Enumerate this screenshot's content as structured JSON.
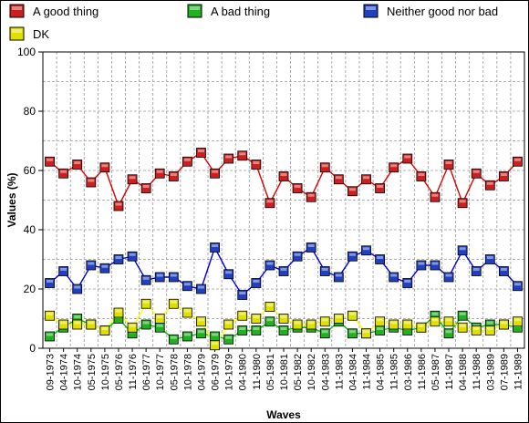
{
  "chart_data": {
    "type": "line",
    "title": "",
    "xlabel": "Waves",
    "ylabel": "Values (%)",
    "ylim": [
      0,
      100
    ],
    "yticks": [
      0,
      20,
      40,
      60,
      80,
      100
    ],
    "grid": true,
    "legend_position": "top",
    "x": [
      "09-1973",
      "04-1974",
      "10-1974",
      "05-1975",
      "10-1975",
      "05-1976",
      "11-1976",
      "06-1977",
      "10-1977",
      "05-1978",
      "10-1978",
      "04-1979",
      "06-1979",
      "10-1979",
      "04-1980",
      "11-1980",
      "05-1981",
      "10-1981",
      "05-1982",
      "10-1982",
      "04-1983",
      "11-1983",
      "04-1984",
      "11-1984",
      "04-1985",
      "11-1985",
      "03-1986",
      "11-1986",
      "05-1987",
      "11-1987",
      "04-1988",
      "11-1988",
      "03-1989",
      "07-1989",
      "11-1989"
    ],
    "series": [
      {
        "name": "A good thing",
        "color": "#e00000",
        "marker": "#cc2020",
        "values": [
          63,
          59,
          62,
          56,
          61,
          48,
          57,
          54,
          59,
          58,
          63,
          66,
          59,
          64,
          65,
          62,
          49,
          58,
          54,
          51,
          61,
          57,
          53,
          57,
          54,
          61,
          64,
          58,
          51,
          62,
          49,
          59,
          55,
          58,
          63
        ]
      },
      {
        "name": "A bad thing",
        "color": "#00c000",
        "marker": "#20b020",
        "values": [
          4,
          7,
          10,
          8,
          6,
          10,
          5,
          8,
          7,
          3,
          4,
          5,
          4,
          3,
          6,
          6,
          9,
          6,
          7,
          7,
          5,
          9,
          5,
          5,
          6,
          7,
          6,
          7,
          11,
          5,
          11,
          7,
          8,
          8,
          7
        ]
      },
      {
        "name": "Neither good nor bad",
        "color": "#0000e0",
        "marker": "#2040c0",
        "values": [
          22,
          26,
          20,
          28,
          27,
          30,
          31,
          23,
          24,
          24,
          21,
          20,
          34,
          25,
          18,
          22,
          28,
          26,
          31,
          34,
          26,
          24,
          31,
          33,
          30,
          24,
          22,
          28,
          28,
          24,
          33,
          26,
          30,
          26,
          21
        ]
      },
      {
        "name": "DK",
        "color": "#ffff00",
        "marker": "#e0e000",
        "values": [
          11,
          8,
          8,
          8,
          6,
          12,
          7,
          15,
          10,
          15,
          12,
          9,
          1,
          8,
          11,
          10,
          14,
          10,
          8,
          8,
          9,
          10,
          11,
          5,
          9,
          8,
          8,
          7,
          9,
          9,
          7,
          6,
          6,
          8,
          9
        ]
      }
    ]
  }
}
